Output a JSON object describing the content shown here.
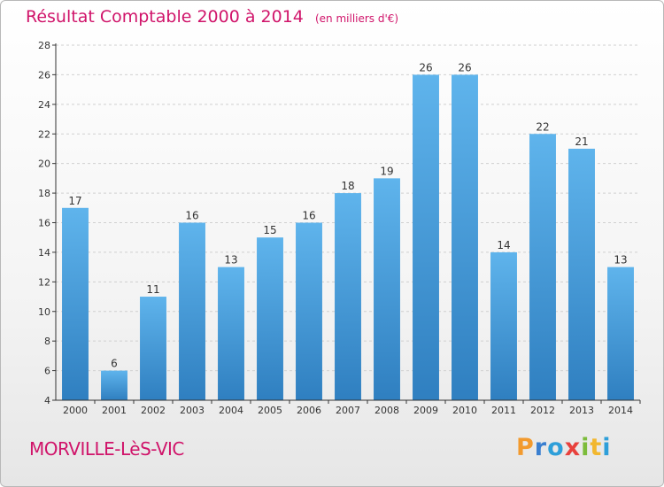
{
  "chart_data": {
    "type": "bar",
    "title": "Résultat Comptable 2000 à 2014",
    "subtitle": "(en milliers d'€)",
    "categories": [
      "2000",
      "2001",
      "2002",
      "2003",
      "2004",
      "2005",
      "2006",
      "2007",
      "2008",
      "2009",
      "2010",
      "2011",
      "2012",
      "2013",
      "2014"
    ],
    "values": [
      17,
      6,
      11,
      16,
      13,
      15,
      16,
      18,
      19,
      26,
      26,
      14,
      22,
      21,
      13
    ],
    "ylim": [
      4,
      28
    ],
    "yticks": [
      4,
      6,
      8,
      10,
      12,
      14,
      16,
      18,
      20,
      22,
      24,
      26,
      28
    ],
    "grid": true,
    "xlabel": "",
    "ylabel": ""
  },
  "footer": {
    "commune": "MORVILLE-LèS-VIC",
    "brand_letters": [
      "P",
      "r",
      "o",
      "x",
      "i",
      "t",
      "i"
    ],
    "brand_colors": [
      "#f29a2e",
      "#3a7fd0",
      "#2e9fd9",
      "#e8413c",
      "#7cbc3b",
      "#f2b72e",
      "#2e9fd9"
    ]
  },
  "colors": {
    "title": "#d0146a",
    "bar_light": "#5fb4ec",
    "bar_dark": "#2f7fc0",
    "grid": "#d0d0d0",
    "axis": "#333333"
  }
}
